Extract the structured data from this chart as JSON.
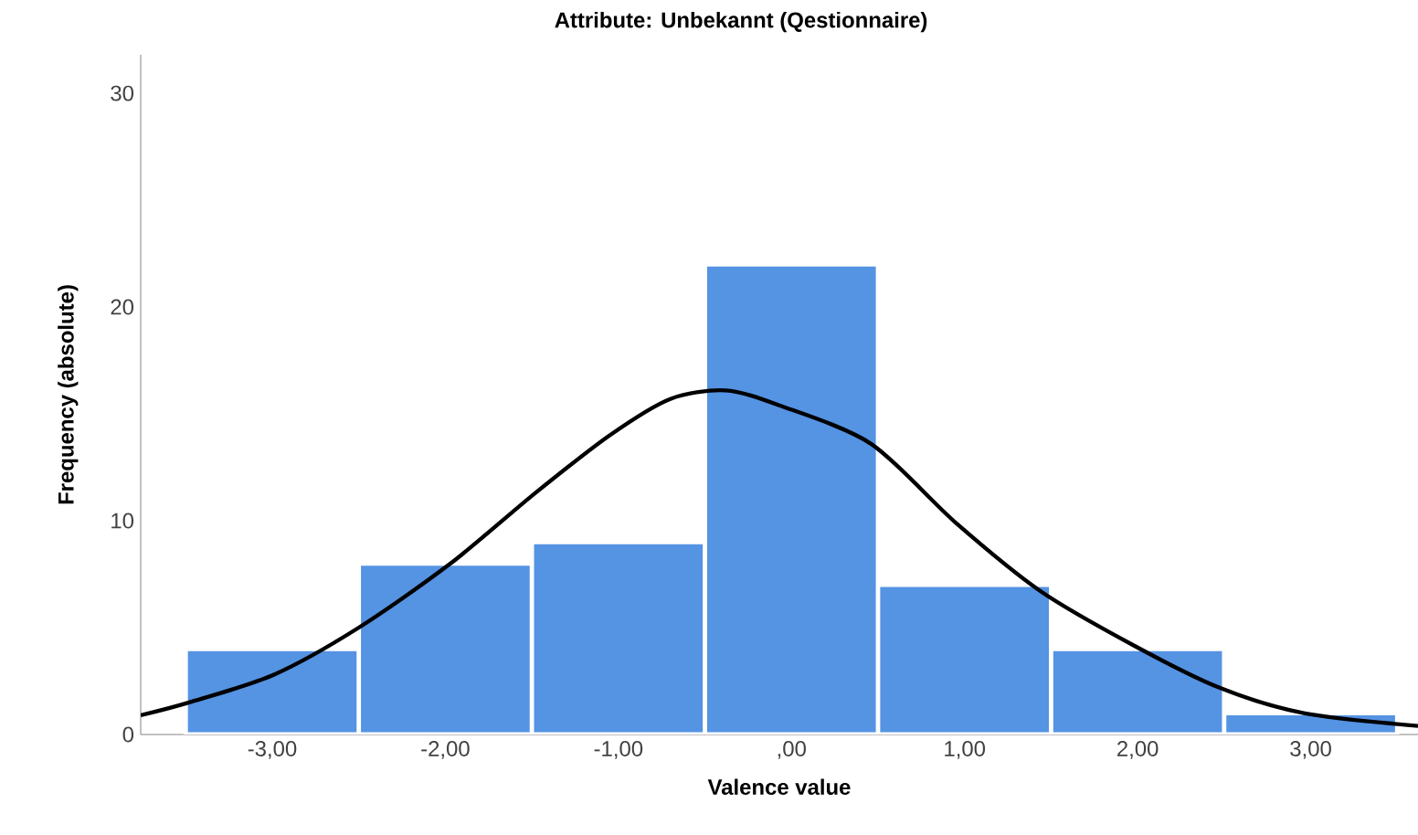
{
  "chart_data": {
    "type": "histogram",
    "title": "Attribute: Unbekannt (Qestionnaire)",
    "xlabel": "Valence value",
    "ylabel": "Frequency (absolute)",
    "bins": [
      -3.5,
      -2.5,
      -1.5,
      -0.5,
      0.5,
      1.5,
      2.5,
      3.5
    ],
    "values": [
      4,
      8,
      9,
      22,
      7,
      4,
      1
    ],
    "color": "#5593e3",
    "series": [
      {
        "type": "line",
        "color": "#000000",
        "x": [
          -3.76,
          -3.48,
          -2.99,
          -2.5,
          -1.97,
          -1.48,
          -1.05,
          -0.7,
          -0.38,
          -0.07,
          0.46,
          0.95,
          1.44,
          1.97,
          2.47,
          2.96,
          3.62
        ],
        "values": [
          0.9,
          1.5,
          2.8,
          5.0,
          8.0,
          11.3,
          14.0,
          15.7,
          16.1,
          15.4,
          13.6,
          9.9,
          6.7,
          4.2,
          2.2,
          1.0,
          0.4
        ]
      }
    ],
    "xlim": [
      -3.76,
      3.62
    ],
    "ylim": [
      0,
      31.8
    ],
    "xticks": [
      {
        "value": -3,
        "label": "-3,00"
      },
      {
        "value": -2,
        "label": "-2,00"
      },
      {
        "value": -1,
        "label": "-1,00"
      },
      {
        "value": 0,
        "label": ",00"
      },
      {
        "value": 1,
        "label": "1,00"
      },
      {
        "value": 2,
        "label": "2,00"
      },
      {
        "value": 3,
        "label": "3,00"
      }
    ],
    "yticks": [
      0,
      10,
      20,
      30
    ]
  }
}
